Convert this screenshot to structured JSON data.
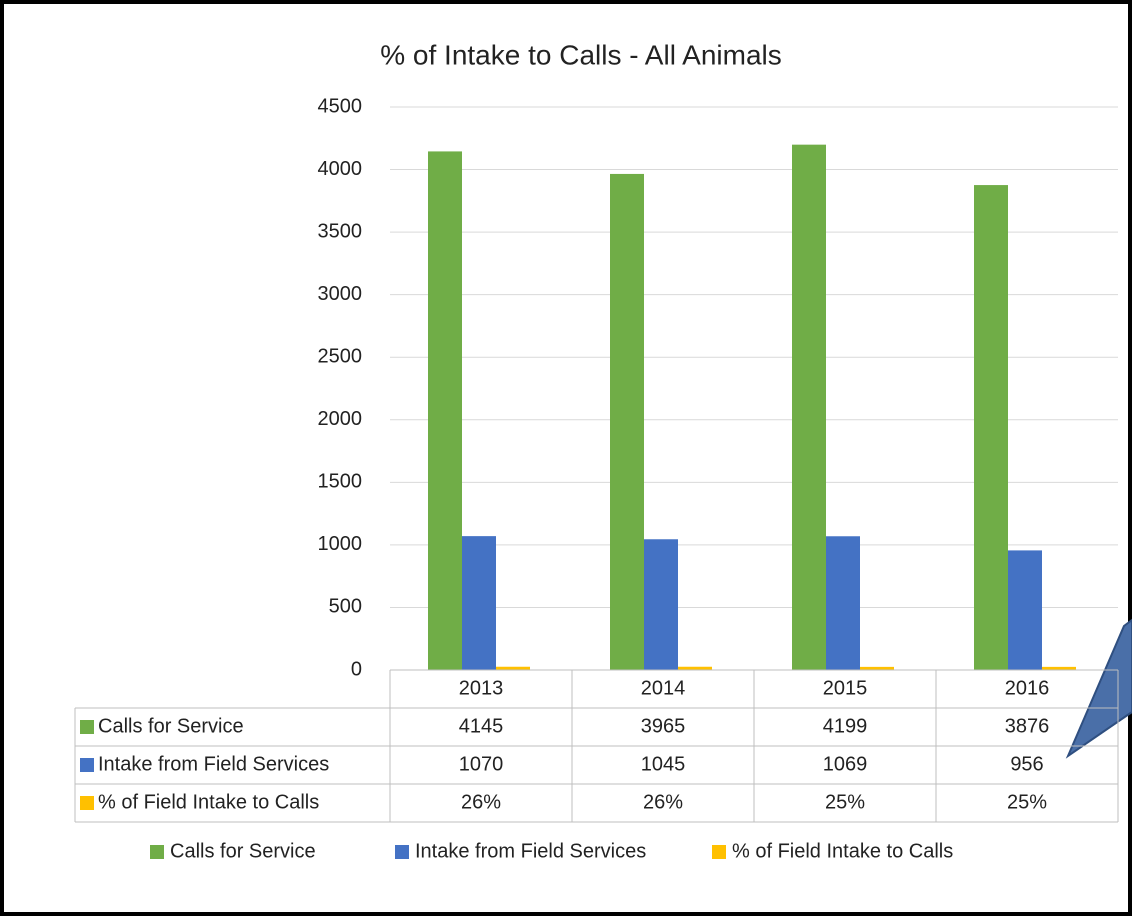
{
  "chart_data": {
    "type": "bar",
    "title": "% of Intake to Calls - All Animals",
    "categories": [
      "2013",
      "2014",
      "2015",
      "2016"
    ],
    "series": [
      {
        "name": "Calls for Service",
        "color": "#70ad47",
        "values": [
          4145,
          3965,
          4199,
          3876
        ]
      },
      {
        "name": "Intake from Field Services",
        "color": "#4472c4",
        "values": [
          1070,
          1045,
          1069,
          956
        ]
      },
      {
        "name": "% of Field Intake to Calls",
        "color": "#ffc000",
        "values": [
          26,
          26,
          25,
          25
        ],
        "value_labels": [
          "26%",
          "26%",
          "25%",
          "25%"
        ]
      }
    ],
    "ylim": [
      0,
      4500
    ],
    "yticks": [
      0,
      500,
      1000,
      1500,
      2000,
      2500,
      3000,
      3500,
      4000,
      4500
    ],
    "grid": true,
    "data_table": true,
    "legend": "bottom"
  }
}
